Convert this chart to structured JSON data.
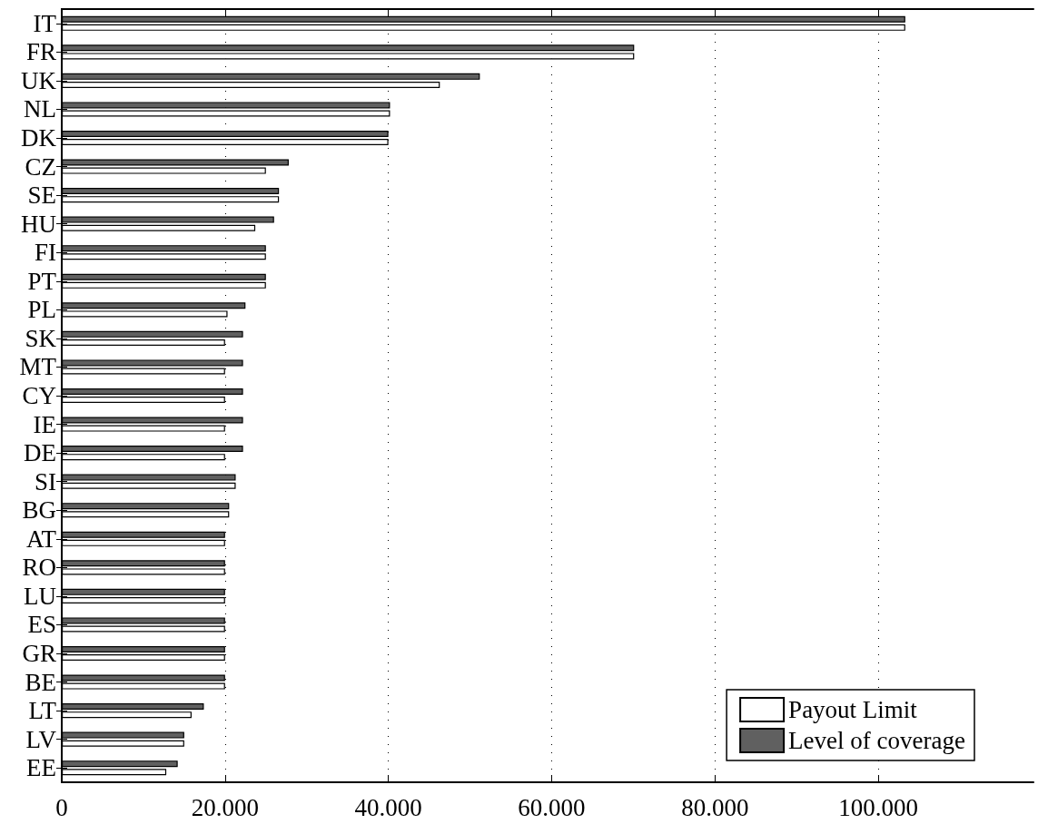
{
  "chart_data": {
    "type": "bar",
    "orientation": "horizontal",
    "categories": [
      "IT",
      "FR",
      "UK",
      "NL",
      "DK",
      "CZ",
      "SE",
      "HU",
      "FI",
      "PT",
      "PL",
      "SK",
      "MT",
      "CY",
      "IE",
      "DE",
      "SI",
      "BG",
      "AT",
      "RO",
      "LU",
      "ES",
      "GR",
      "BE",
      "LT",
      "LV",
      "EE"
    ],
    "series": [
      {
        "name": "Payout Limit",
        "color": "#ffffff",
        "values": [
          103300,
          70100,
          46300,
          40200,
          40000,
          25000,
          26600,
          23700,
          25000,
          25000,
          20300,
          20000,
          20000,
          20000,
          20000,
          20000,
          21300,
          20500,
          20000,
          20000,
          20000,
          20000,
          20000,
          20000,
          15900,
          15000,
          12800
        ]
      },
      {
        "name": "Level of coverage",
        "color": "#606060",
        "values": [
          103300,
          70100,
          51200,
          40200,
          40000,
          27800,
          26600,
          26000,
          25000,
          25000,
          22500,
          22200,
          22200,
          22200,
          22200,
          22200,
          21300,
          20500,
          20000,
          20000,
          20000,
          20000,
          20000,
          20000,
          17400,
          15000,
          14200
        ]
      }
    ],
    "xlim": [
      0,
      119000
    ],
    "xticks": [
      0,
      {
        "value": 20000,
        "label": "20.000"
      },
      {
        "value": 40000,
        "label": "40.000"
      },
      {
        "value": 60000,
        "label": "60.000"
      },
      {
        "value": 80000,
        "label": "80.000"
      },
      {
        "value": 100000,
        "label": "100.000"
      }
    ],
    "grid": "x",
    "legend": "bottom right"
  }
}
